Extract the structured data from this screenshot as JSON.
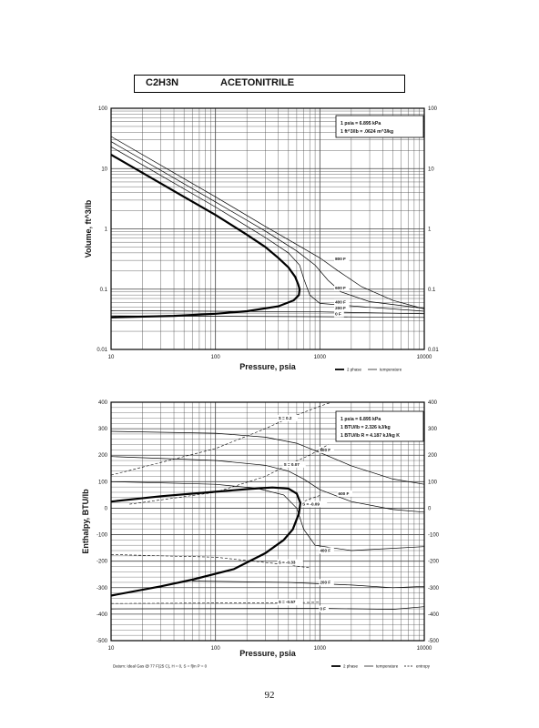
{
  "header": {
    "formula": "C2H3N",
    "name": "ACETONITRILE"
  },
  "page_number": "92",
  "chart_data": [
    {
      "type": "line",
      "x_scale": "log",
      "y_scale": "log",
      "xlabel": "Pressure,  psia",
      "ylabel": "Volume, ft^3/lb",
      "xlim": [
        10,
        10000
      ],
      "ylim": [
        0.01,
        100
      ],
      "x_ticks": [
        10,
        100,
        1000,
        10000
      ],
      "x_tick_labels": [
        "10",
        "100",
        "1000",
        "10000"
      ],
      "y_ticks": [
        0.01,
        0.1,
        1,
        10,
        100
      ],
      "y_tick_labels": [
        "0.01",
        "0.1",
        "1",
        "10",
        "100"
      ],
      "grid": true,
      "info_lines": [
        "1 psia  =  6.895 kPa",
        "1 ft^3/lb  =  .0624 m^3/kg"
      ],
      "legend": [
        "2 phase",
        "temperature"
      ],
      "series": [
        {
          "kind": "2phase",
          "points": [
            [
              10,
              17
            ],
            [
              20,
              8.5
            ],
            [
              50,
              3.4
            ],
            [
              100,
              1.7
            ],
            [
              200,
              0.8
            ],
            [
              300,
              0.5
            ],
            [
              400,
              0.33
            ],
            [
              500,
              0.23
            ],
            [
              580,
              0.16
            ],
            [
              620,
              0.12
            ],
            [
              640,
              0.1
            ],
            [
              630,
              0.08
            ],
            [
              560,
              0.065
            ],
            [
              400,
              0.052
            ],
            [
              200,
              0.043
            ],
            [
              100,
              0.039
            ],
            [
              40,
              0.036
            ],
            [
              10,
              0.034
            ]
          ]
        },
        {
          "name": "800 F",
          "label_at": [
            1400,
            0.3
          ],
          "points": [
            [
              10,
              34
            ],
            [
              100,
              3.4
            ],
            [
              300,
              1.1
            ],
            [
              600,
              0.55
            ],
            [
              1000,
              0.33
            ],
            [
              1500,
              0.2
            ],
            [
              2500,
              0.11
            ],
            [
              5000,
              0.065
            ],
            [
              10000,
              0.047
            ]
          ]
        },
        {
          "name": "600 F",
          "label_at": [
            1400,
            0.1
          ],
          "points": [
            [
              10,
              28
            ],
            [
              100,
              2.8
            ],
            [
              300,
              0.92
            ],
            [
              600,
              0.43
            ],
            [
              900,
              0.25
            ],
            [
              1200,
              0.14
            ],
            [
              1600,
              0.09
            ],
            [
              3000,
              0.062
            ],
            [
              10000,
              0.048
            ]
          ]
        },
        {
          "name": "400 F",
          "label_at": [
            1400,
            0.058
          ],
          "points": [
            [
              10,
              23
            ],
            [
              100,
              2.3
            ],
            [
              300,
              0.72
            ],
            [
              500,
              0.4
            ],
            [
              640,
              0.25
            ],
            [
              700,
              0.15
            ],
            [
              800,
              0.08
            ],
            [
              1000,
              0.058
            ],
            [
              3000,
              0.05
            ],
            [
              10000,
              0.043
            ]
          ]
        },
        {
          "name": "200 F",
          "label_at": [
            1400,
            0.046
          ],
          "points": [
            [
              10,
              0.044
            ],
            [
              1000,
              0.042
            ],
            [
              10000,
              0.039
            ]
          ]
        },
        {
          "name": "0 F",
          "label_at": [
            1400,
            0.037
          ],
          "points": [
            [
              10,
              0.036
            ],
            [
              1000,
              0.035
            ],
            [
              10000,
              0.034
            ]
          ]
        }
      ]
    },
    {
      "type": "line",
      "x_scale": "log",
      "xlabel": "Pressure,  psia",
      "ylabel": "Enthalpy, BTU/lb",
      "xlim": [
        10,
        10000
      ],
      "ylim": [
        -500,
        400
      ],
      "x_ticks": [
        10,
        100,
        1000,
        10000
      ],
      "x_tick_labels": [
        "10",
        "100",
        "1000",
        "10000"
      ],
      "y_ticks": [
        -500,
        -400,
        -300,
        -200,
        -100,
        0,
        100,
        200,
        300,
        400
      ],
      "y_tick_labels": [
        "-500",
        "-400",
        "-300",
        "-200",
        "-100",
        "0",
        "100",
        "200",
        "300",
        "400"
      ],
      "grid": true,
      "info_lines": [
        "1 psia  =  6.895 kPa",
        "1 BTU/lb  =  2.326 kJ/kg",
        "1 BTU/lb R  =  4.187 kJ/kg K"
      ],
      "legend": [
        "2 phase",
        "temperature",
        "entropy"
      ],
      "footnote": "Datum: Ideal Gas @ 77 F(25 C),  H = 0,  S = f(in P = 0",
      "series": [
        {
          "kind": "2phase",
          "points": [
            [
              10,
              25
            ],
            [
              30,
              45
            ],
            [
              100,
              62
            ],
            [
              200,
              72
            ],
            [
              350,
              78
            ],
            [
              500,
              74
            ],
            [
              600,
              55
            ],
            [
              650,
              20
            ],
            [
              630,
              -20
            ],
            [
              550,
              -80
            ],
            [
              450,
              -120
            ],
            [
              300,
              -170
            ],
            [
              150,
              -230
            ],
            [
              60,
              -270
            ],
            [
              30,
              -295
            ],
            [
              10,
              -330
            ]
          ]
        },
        {
          "name": "800 F",
          "label_at": [
            1000,
            215
          ],
          "points": [
            [
              10,
              290
            ],
            [
              100,
              283
            ],
            [
              300,
              268
            ],
            [
              600,
              245
            ],
            [
              1000,
              210
            ],
            [
              2000,
              160
            ],
            [
              5000,
              110
            ],
            [
              10000,
              90
            ]
          ]
        },
        {
          "name": "600 F",
          "label_at": [
            1500,
            50
          ],
          "points": [
            [
              10,
              195
            ],
            [
              100,
              180
            ],
            [
              300,
              162
            ],
            [
              500,
              140
            ],
            [
              700,
              110
            ],
            [
              1000,
              70
            ],
            [
              2000,
              25
            ],
            [
              5000,
              -5
            ],
            [
              10000,
              -15
            ]
          ]
        },
        {
          "name": "400 F",
          "label_at": [
            1000,
            -165
          ],
          "points": [
            [
              10,
              100
            ],
            [
              100,
              90
            ],
            [
              250,
              75
            ],
            [
              450,
              50
            ],
            [
              600,
              0
            ],
            [
              700,
              -80
            ],
            [
              900,
              -140
            ],
            [
              2000,
              -160
            ],
            [
              10000,
              -145
            ]
          ]
        },
        {
          "name": "200 F",
          "label_at": [
            1000,
            -285
          ],
          "points": [
            [
              60,
              -275
            ],
            [
              500,
              -280
            ],
            [
              2000,
              -290
            ],
            [
              5000,
              -300
            ],
            [
              10000,
              -295
            ]
          ]
        },
        {
          "name": "0 F",
          "label_at": [
            1000,
            -385
          ],
          "points": [
            [
              10,
              -380
            ],
            [
              1000,
              -378
            ],
            [
              5000,
              -382
            ],
            [
              10000,
              -372
            ]
          ]
        },
        {
          "kind": "entropy",
          "name": "S = 0.2",
          "label_at": [
            400,
            335
          ],
          "points": [
            [
              10,
              125
            ],
            [
              50,
              195
            ],
            [
              100,
              225
            ],
            [
              300,
              300
            ],
            [
              500,
              340
            ],
            [
              1000,
              385
            ],
            [
              1300,
              400
            ]
          ]
        },
        {
          "kind": "entropy",
          "name": "S = 0.07",
          "label_at": [
            450,
            160
          ],
          "points": [
            [
              15,
              15
            ],
            [
              100,
              60
            ],
            [
              300,
              120
            ],
            [
              500,
              165
            ],
            [
              800,
              200
            ],
            [
              1200,
              240
            ]
          ]
        },
        {
          "kind": "entropy",
          "name": "S = -0.09",
          "label_at": [
            680,
            10
          ],
          "points": [
            [
              650,
              20
            ],
            [
              800,
              35
            ],
            [
              1000,
              48
            ]
          ]
        },
        {
          "kind": "entropy",
          "name": "S = -0.33",
          "label_at": [
            400,
            -210
          ],
          "points": [
            [
              10,
              -175
            ],
            [
              100,
              -185
            ],
            [
              400,
              -210
            ],
            [
              800,
              -225
            ]
          ]
        },
        {
          "kind": "entropy",
          "name": "S = -0.57",
          "label_at": [
            400,
            -360
          ],
          "points": [
            [
              10,
              -360
            ],
            [
              100,
              -358
            ],
            [
              400,
              -358
            ],
            [
              1000,
              -355
            ]
          ]
        }
      ]
    }
  ]
}
